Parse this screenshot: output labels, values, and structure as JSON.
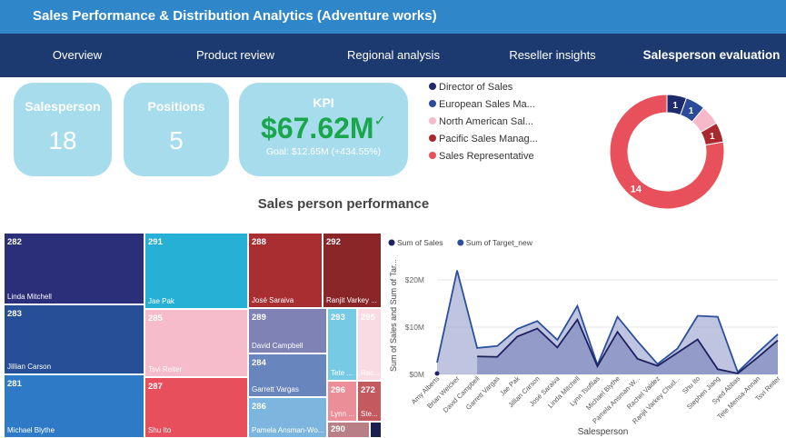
{
  "header": {
    "title": "Sales Performance & Distribution Analytics (Adventure works)"
  },
  "nav": [
    {
      "label": "Overview"
    },
    {
      "label": "Product review"
    },
    {
      "label": "Regional analysis"
    },
    {
      "label": "Reseller insights"
    },
    {
      "label": "Salesperson evaluation",
      "active": true
    }
  ],
  "cards": {
    "salesperson": {
      "title": "Salesperson",
      "value": "18"
    },
    "positions": {
      "title": "Positions",
      "value": "5"
    },
    "kpi": {
      "title": "KPI",
      "value": "$67.62M",
      "check": "✓",
      "goal": "Goal: $12.65M (+434.55%)"
    }
  },
  "section_title": "Sales person performance",
  "colors": {
    "header_bg": "#2f86c8",
    "nav_bg": "#1c3a70",
    "card_bg": "#a6dcec",
    "kpi_value": "#1aa64b"
  },
  "chart_data": [
    {
      "type": "pie",
      "variant": "donut",
      "legend_position": "left",
      "categories": [
        "Director of Sales",
        "European Sales Ma...",
        "North American Sal...",
        "Pacific Sales Manag...",
        "Sales Representative"
      ],
      "values": [
        1,
        1,
        1,
        1,
        14
      ],
      "colors": [
        "#1e2a6e",
        "#2b4a99",
        "#f7b9c9",
        "#a82a2e",
        "#e8505b"
      ],
      "data_labels": [
        "1",
        "1",
        "",
        "1",
        "14"
      ]
    },
    {
      "type": "treemap",
      "title": "Sales person performance",
      "items": [
        {
          "label": "Linda Mitchell",
          "value": 282,
          "color": "#2b2f79"
        },
        {
          "label": "Jillian Carson",
          "value": 283,
          "color": "#264f97"
        },
        {
          "label": "Michael Blythe",
          "value": 281,
          "color": "#2f7ac6"
        },
        {
          "label": "Jae Pak",
          "value": 291,
          "color": "#27b0d6"
        },
        {
          "label": "Tsvi Reiter",
          "value": 285,
          "color": "#f7bccb"
        },
        {
          "label": "Shu Ito",
          "value": 287,
          "color": "#e64f5b"
        },
        {
          "label": "José Saraiva",
          "value": 288,
          "color": "#a82e31"
        },
        {
          "label": "Ranjit Varkey ...",
          "value": 292,
          "color": "#8a2528"
        },
        {
          "label": "David Campbell",
          "value": 289,
          "color": "#7e82b5"
        },
        {
          "label": "Garrett Vargas",
          "value": 284,
          "color": "#6885be"
        },
        {
          "label": "Pamela Ansman-Wo...",
          "value": 286,
          "color": "#7cb5dd"
        },
        {
          "label": "Tete ...",
          "value": 293,
          "color": "#77cae4"
        },
        {
          "label": "Rac...",
          "value": 295,
          "color": "#f9dce3"
        },
        {
          "label": "Lynn ...",
          "value": 296,
          "color": "#eb8e97"
        },
        {
          "label": "Ste...",
          "value": 272,
          "color": "#c4595f"
        },
        {
          "label": "",
          "value": 290,
          "color": "#b87f86"
        },
        {
          "label": "",
          "value": null,
          "color": "#1a1f4f"
        }
      ]
    },
    {
      "type": "area",
      "xlabel": "Salesperson",
      "ylabel": "Sum of Sales and Sum of Tar...",
      "ylim": [
        0,
        25
      ],
      "yticks": [
        "$0M",
        "$10M",
        "$20M"
      ],
      "legend_position": "top-left",
      "categories": [
        "Amy Alberts",
        "Brian Welcker",
        "David Campbell",
        "Garrett Vargas",
        "Jae Pak",
        "Jillian Carson",
        "José Saraiva",
        "Linda Mitchell",
        "Lynn Tsoflias",
        "Michael Blythe",
        "Pamela Ansman-W...",
        "Rachel Valdez",
        "Ranjit Varkey Chud...",
        "Shu Ito",
        "Stephen Jiang",
        "Syed Abbas",
        "Tete Mensa-Annan",
        "Tsvi Reiter"
      ],
      "series": [
        {
          "name": "Sum of Sales",
          "color": "#1e2060",
          "values": [
            0.2,
            null,
            3.8,
            3.7,
            8.0,
            9.7,
            5.7,
            11.6,
            1.7,
            9.0,
            3.3,
            1.8,
            4.6,
            7.4,
            1.1,
            0.2,
            3.6,
            7.2
          ]
        },
        {
          "name": "Sum of Target_new",
          "color": "#2c4f9b",
          "values": [
            2.5,
            22.0,
            5.6,
            6.0,
            9.6,
            11.3,
            7.3,
            14.5,
            2.0,
            12.2,
            7.0,
            2.2,
            5.5,
            12.4,
            12.2,
            0.5,
            4.6,
            8.5
          ]
        }
      ]
    }
  ]
}
